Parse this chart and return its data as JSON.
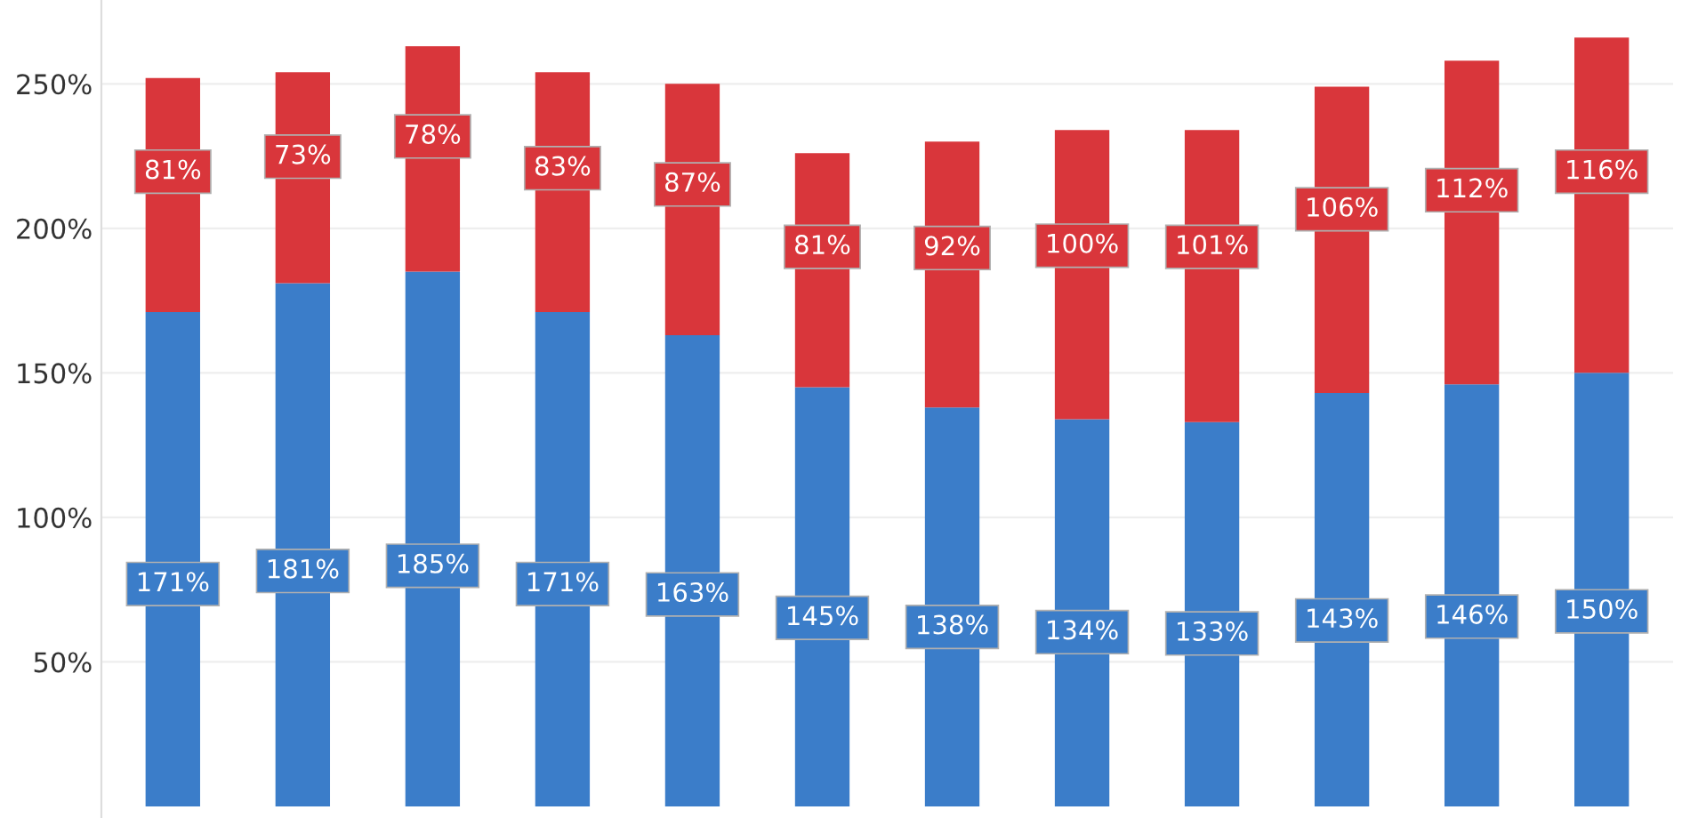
{
  "chart_data": {
    "type": "bar",
    "stacked": true,
    "categories": [
      null,
      null,
      null,
      null,
      null,
      null,
      null,
      null,
      null,
      null,
      null,
      null
    ],
    "series": [
      {
        "color": "#3b7dc9",
        "values": [
          171,
          181,
          185,
          171,
          163,
          145,
          138,
          134,
          133,
          143,
          146,
          150
        ],
        "value_labels": [
          "171%",
          "181%",
          "185%",
          "171%",
          "163%",
          "145%",
          "138%",
          "134%",
          "133%",
          "143%",
          "146%",
          "150%"
        ]
      },
      {
        "color": "#d9363b",
        "values": [
          81,
          73,
          78,
          83,
          87,
          81,
          92,
          100,
          101,
          106,
          112,
          116
        ],
        "value_labels": [
          "81%",
          "73%",
          "78%",
          "83%",
          "87%",
          "81%",
          "92%",
          "100%",
          "101%",
          "106%",
          "112%",
          "116%"
        ]
      }
    ],
    "ylim": [
      -4,
      279
    ],
    "yticks": [
      {
        "value": 50,
        "label": "50%"
      },
      {
        "value": 100,
        "label": "100%"
      },
      {
        "value": 150,
        "label": "150%"
      },
      {
        "value": 200,
        "label": "200%"
      },
      {
        "value": 250,
        "label": "250%"
      }
    ],
    "grid": "y"
  }
}
